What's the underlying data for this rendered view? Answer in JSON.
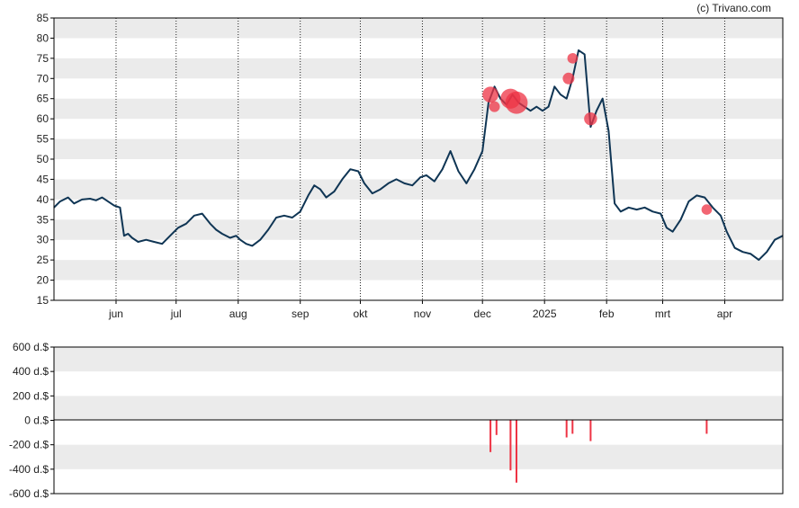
{
  "credit": "(c) Trivano.com",
  "colors": {
    "price_line": "#0f3554",
    "trade_marker": "#ee3344",
    "band_gray": "#ebebeb",
    "vgrid": "#222222"
  },
  "chart_data": [
    {
      "type": "line",
      "name": "price",
      "ylim": [
        15,
        85
      ],
      "yticks": [
        "15",
        "20",
        "25",
        "30",
        "35",
        "40",
        "45",
        "50",
        "55",
        "60",
        "65",
        "70",
        "75",
        "80",
        "85"
      ],
      "x_range": [
        "2024-05-01",
        "2025-04-30"
      ],
      "months": [
        {
          "label": "jun",
          "date": "2024-06-01"
        },
        {
          "label": "jul",
          "date": "2024-07-01"
        },
        {
          "label": "aug",
          "date": "2024-08-01"
        },
        {
          "label": "sep",
          "date": "2024-09-01"
        },
        {
          "label": "okt",
          "date": "2024-10-01"
        },
        {
          "label": "nov",
          "date": "2024-11-01"
        },
        {
          "label": "dec",
          "date": "2024-12-01"
        },
        {
          "label": "2025",
          "date": "2025-01-01"
        },
        {
          "label": "feb",
          "date": "2025-02-01"
        },
        {
          "label": "mrt",
          "date": "2025-03-01"
        },
        {
          "label": "apr",
          "date": "2025-04-01"
        }
      ],
      "series": [
        {
          "x": [
            "2024-05-01",
            "2024-05-04",
            "2024-05-08",
            "2024-05-11",
            "2024-05-15",
            "2024-05-19",
            "2024-05-22",
            "2024-05-25",
            "2024-05-28",
            "2024-05-31",
            "2024-06-03",
            "2024-06-05",
            "2024-06-07",
            "2024-06-09",
            "2024-06-12",
            "2024-06-16",
            "2024-06-20",
            "2024-06-24",
            "2024-06-28",
            "2024-07-02",
            "2024-07-06",
            "2024-07-10",
            "2024-07-14",
            "2024-07-18",
            "2024-07-21",
            "2024-07-24",
            "2024-07-28",
            "2024-07-31",
            "2024-08-02",
            "2024-08-05",
            "2024-08-08",
            "2024-08-12",
            "2024-08-16",
            "2024-08-20",
            "2024-08-24",
            "2024-08-28",
            "2024-09-01",
            "2024-09-05",
            "2024-09-08",
            "2024-09-11",
            "2024-09-14",
            "2024-09-18",
            "2024-09-22",
            "2024-09-26",
            "2024-09-30",
            "2024-10-03",
            "2024-10-07",
            "2024-10-11",
            "2024-10-15",
            "2024-10-19",
            "2024-10-23",
            "2024-10-27",
            "2024-10-31",
            "2024-11-03",
            "2024-11-07",
            "2024-11-11",
            "2024-11-15",
            "2024-11-19",
            "2024-11-23",
            "2024-11-27",
            "2024-12-01",
            "2024-12-04",
            "2024-12-07",
            "2024-12-10",
            "2024-12-13",
            "2024-12-16",
            "2024-12-19",
            "2024-12-22",
            "2024-12-25",
            "2024-12-28",
            "2024-12-31",
            "2025-01-03",
            "2025-01-06",
            "2025-01-09",
            "2025-01-12",
            "2025-01-15",
            "2025-01-18",
            "2025-01-21",
            "2025-01-24",
            "2025-01-27",
            "2025-01-30",
            "2025-02-02",
            "2025-02-05",
            "2025-02-08",
            "2025-02-12",
            "2025-02-16",
            "2025-02-20",
            "2025-02-24",
            "2025-02-28",
            "2025-03-03",
            "2025-03-06",
            "2025-03-10",
            "2025-03-14",
            "2025-03-18",
            "2025-03-22",
            "2025-03-26",
            "2025-03-30",
            "2025-04-02",
            "2025-04-06",
            "2025-04-10",
            "2025-04-14",
            "2025-04-18",
            "2025-04-22",
            "2025-04-26",
            "2025-04-30"
          ],
          "y": [
            38,
            39.5,
            40.5,
            39,
            40,
            40.2,
            39.8,
            40.5,
            39.5,
            38.5,
            38,
            31,
            31.5,
            30.5,
            29.5,
            30,
            29.5,
            29,
            31,
            33,
            34,
            36,
            36.5,
            34,
            32.5,
            31.5,
            30.5,
            31,
            30,
            29,
            28.5,
            30,
            32.5,
            35.5,
            36,
            35.5,
            37,
            41,
            43.5,
            42.5,
            40.5,
            42,
            45,
            47.5,
            47,
            44,
            41.5,
            42.5,
            44,
            45,
            44,
            43.5,
            45.5,
            46,
            44.5,
            47.5,
            52,
            47,
            44,
            47.5,
            52,
            64,
            68,
            65,
            63.5,
            66,
            64,
            63,
            62,
            63,
            62,
            63,
            68,
            66,
            65,
            70,
            77,
            76,
            58,
            62,
            65,
            57,
            39,
            37,
            38,
            37.5,
            38,
            37,
            36.5,
            33,
            32,
            35,
            39.5,
            41,
            40.5,
            38,
            36,
            32,
            28,
            27,
            26.5,
            25,
            27,
            30,
            31
          ]
        }
      ],
      "trade_markers": [
        {
          "x": "2024-12-05",
          "y": 66
        },
        {
          "x": "2024-12-07",
          "y": 63
        },
        {
          "x": "2024-12-15",
          "y": 65
        },
        {
          "x": "2024-12-18",
          "y": 64
        },
        {
          "x": "2025-01-13",
          "y": 70
        },
        {
          "x": "2025-01-15",
          "y": 75
        },
        {
          "x": "2025-01-24",
          "y": 60
        },
        {
          "x": "2025-03-23",
          "y": 37.5
        }
      ]
    },
    {
      "type": "bar",
      "name": "transactions",
      "ylim": [
        -600,
        600
      ],
      "yticks": [
        "600 d.$",
        "400 d.$",
        "200 d.$",
        "0 d.$",
        "-200 d.$",
        "-400 d.$",
        "-600 d.$"
      ],
      "bars": [
        {
          "x": "2024-12-05",
          "value": -260
        },
        {
          "x": "2024-12-08",
          "value": -120
        },
        {
          "x": "2024-12-15",
          "value": -410
        },
        {
          "x": "2024-12-18",
          "value": -510
        },
        {
          "x": "2025-01-12",
          "value": -140
        },
        {
          "x": "2025-01-15",
          "value": -110
        },
        {
          "x": "2025-01-24",
          "value": -170
        },
        {
          "x": "2025-03-23",
          "value": -110
        }
      ]
    }
  ]
}
